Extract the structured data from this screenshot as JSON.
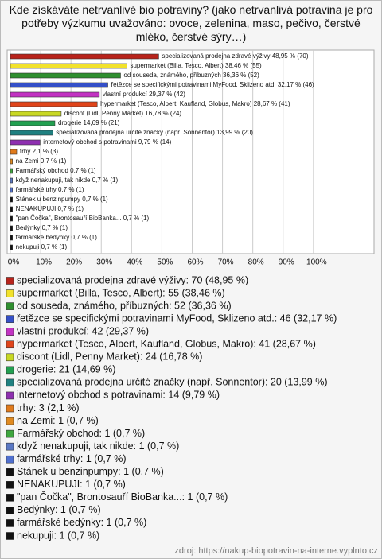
{
  "chart_data": {
    "type": "barh",
    "title": "Kde získáváte netrvanlivé bio potraviny? (jako netrvanlivá potravina je pro potřeby výzkumu uvažováno: ovoce, zelenina, maso, pečivo, čerstvé mléko, čerstvé sýry…)",
    "categories": [
      "specializovaná prodejna zdravé výživy",
      "supermarket (Billa, Tesco, Albert)",
      "od souseda, známého, příbuzných",
      "řetězce se specifickými potravinami MyFood, Sklizeno atd.",
      "vlastní produkcí",
      "hypermarket (Tesco, Albert, Kaufland, Globus, Makro)",
      "discont (Lidl, Penny Market)",
      "drogerie",
      "specializovaná prodejna určité značky (např. Sonnentor)",
      "internetový obchod s potravinami",
      "trhy",
      "na Zemi",
      "Farmářský obchod",
      "když nenakupuji, tak nikde",
      "farmářské trhy",
      "Stánek u benzinpumpy",
      "NENAKUPUJI",
      "\"pan Čočka\", Brontosauří BioBanka...",
      "Bedýnky",
      "farmářské bedýnky",
      "nekupuji"
    ],
    "values": [
      48.95,
      38.46,
      36.36,
      32.17,
      29.37,
      28.67,
      16.78,
      14.69,
      13.99,
      9.79,
      2.1,
      0.7,
      0.7,
      0.7,
      0.7,
      0.7,
      0.7,
      0.7,
      0.7,
      0.7,
      0.7
    ],
    "bar_labels": [
      "specializovaná prodejna zdravé výživy 48,95 % (70)",
      "supermarket (Billa, Tesco, Albert) 38,46 % (55)",
      "od souseda, známého, příbuzných 36,36 % (52)",
      "řetězce se specifickými potravinami MyFood, Sklizeno atd. 32,17 % (46)",
      "vlastní produkcí 29,37 % (42)",
      "hypermarket (Tesco, Albert, Kaufland, Globus, Makro) 28,67 % (41)",
      "discont (Lidl, Penny Market) 16,78 % (24)",
      "drogerie 14,69 % (21)",
      "specializovaná prodejna určité značky (např. Sonnentor) 13,99 % (20)",
      "internetový obchod s potravinami 9,79 % (14)",
      "trhy 2,1 % (3)",
      "na Zemi 0,7 % (1)",
      "Farmářský obchod 0,7 % (1)",
      "když nenakupuji, tak nikde 0,7 % (1)",
      "farmářské trhy 0,7 % (1)",
      "Stánek u benzinpumpy 0,7 % (1)",
      "NENAKUPUJI 0,7 % (1)",
      "\"pan Čočka\", Brontosauří BioBanka... 0,7 % (1)",
      "Bedýnky 0,7 % (1)",
      "farmářské bedýnky 0,7 % (1)",
      "nekupuji 0,7 % (1)"
    ],
    "legend_labels": [
      "specializovaná prodejna zdravé výživy: 70 (48,95 %)",
      "supermarket (Billa, Tesco, Albert): 55 (38,46 %)",
      "od souseda, známého, příbuzných: 52 (36,36 %)",
      "řetězce se specifickými potravinami MyFood, Sklizeno atd.: 46 (32,17 %)",
      "vlastní produkcí: 42 (29,37 %)",
      "hypermarket (Tesco, Albert, Kaufland, Globus, Makro): 41 (28,67 %)",
      "discont (Lidl, Penny Market): 24 (16,78 %)",
      "drogerie: 21 (14,69 %)",
      "specializovaná prodejna určité značky (např. Sonnentor): 20 (13,99 %)",
      "internetový obchod s potravinami: 14 (9,79 %)",
      "trhy: 3 (2,1 %)",
      "na Zemi: 1 (0,7 %)",
      "Farmářský obchod: 1 (0,7 %)",
      "když nenakupuji, tak nikde: 1 (0,7 %)",
      "farmářské trhy: 1 (0,7 %)",
      "Stánek u benzinpumpy: 1 (0,7 %)",
      "NENAKUPUJI: 1 (0,7 %)",
      "\"pan Čočka\", Brontosauří BioBanka...: 1 (0,7 %)",
      "Bedýnky: 1 (0,7 %)",
      "farmářské bedýnky: 1 (0,7 %)",
      "nekupuji: 1 (0,7 %)"
    ],
    "colors": [
      "#b8231b",
      "#f2e22c",
      "#2f8f2f",
      "#3550c8",
      "#c232c2",
      "#e0441a",
      "#c8d824",
      "#22a050",
      "#1f8080",
      "#8e2fb0",
      "#e07a1c",
      "#e08a20",
      "#3ea63e",
      "#5a78c4",
      "#5070d0",
      "#111111",
      "#111111",
      "#111111",
      "#111111",
      "#111111",
      "#111111"
    ],
    "xlim": [
      0,
      120
    ],
    "xticks": [
      {
        "value": 0,
        "label": "0%"
      },
      {
        "value": 10,
        "label": "10%"
      },
      {
        "value": 20,
        "label": "20%"
      },
      {
        "value": 30,
        "label": "30%"
      },
      {
        "value": 40,
        "label": "40%"
      },
      {
        "value": 50,
        "label": "50%"
      },
      {
        "value": 60,
        "label": "60%"
      },
      {
        "value": 70,
        "label": "70%"
      },
      {
        "value": 80,
        "label": "80%"
      },
      {
        "value": 90,
        "label": "90%"
      },
      {
        "value": 100,
        "label": "100%"
      }
    ],
    "grid": true,
    "source": "zdroj: https://nakup-biopotravin-na-interne.vyplnto.cz"
  }
}
